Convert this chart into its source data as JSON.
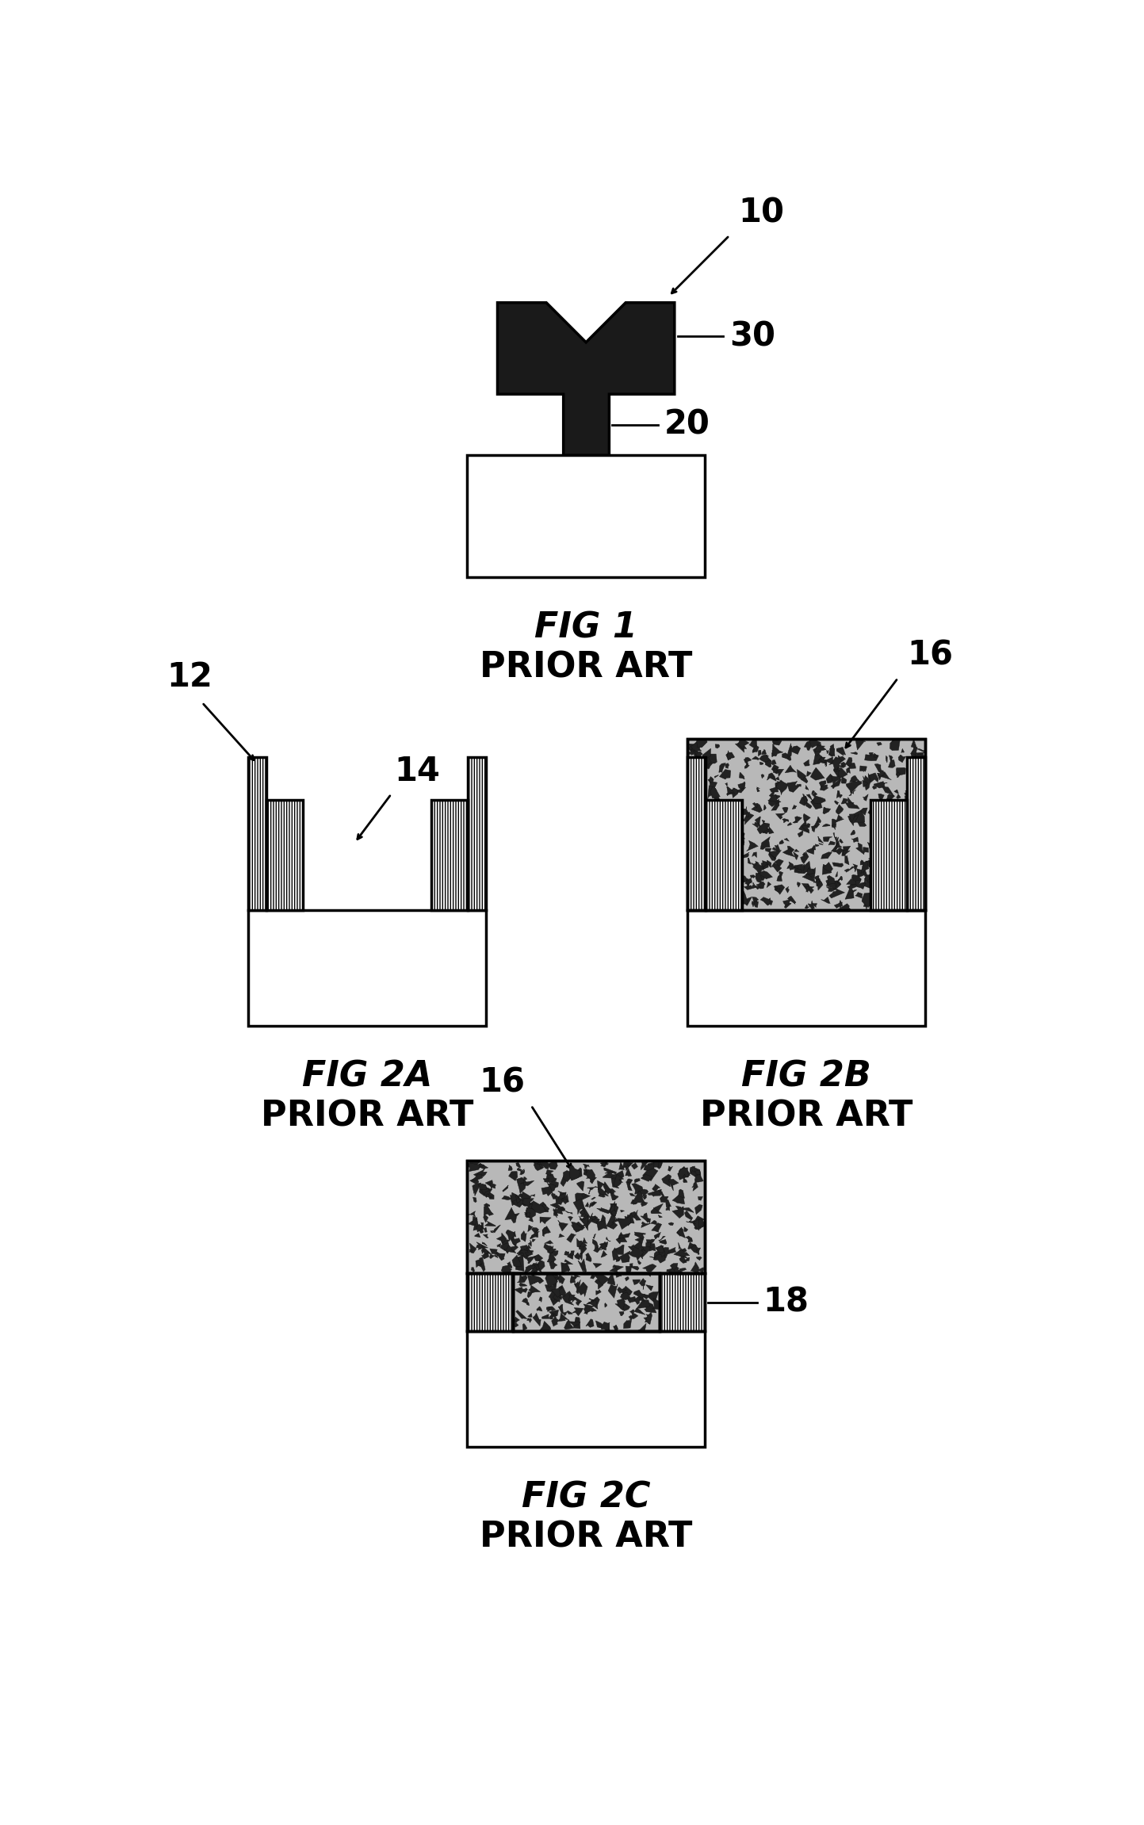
{
  "bg_color": "#ffffff",
  "line_color": "#000000",
  "dark_fill": "#1a1a1a",
  "white_fill": "#ffffff",
  "gray_fill": "#b8b8b8",
  "fig1": {
    "label": "FIG 1",
    "sublabel": "PRIOR ART",
    "ref10": "10",
    "ref20": "20",
    "ref30": "30"
  },
  "fig2a": {
    "label": "FIG 2A",
    "sublabel": "PRIOR ART",
    "ref12": "12",
    "ref14": "14"
  },
  "fig2b": {
    "label": "FIG 2B",
    "sublabel": "PRIOR ART",
    "ref16": "16"
  },
  "fig2c": {
    "label": "FIG 2C",
    "sublabel": "PRIOR ART",
    "ref16": "16",
    "ref18": "18"
  }
}
